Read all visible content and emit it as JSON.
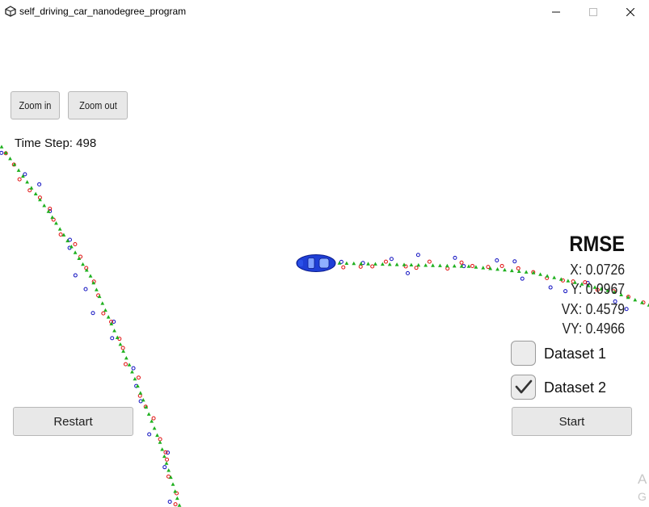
{
  "window": {
    "title": "self_driving_car_nanodegree_program"
  },
  "toolbar": {
    "zoom_in_label": "Zoom in",
    "zoom_out_label": "Zoom out"
  },
  "sim": {
    "time_step_label": "Time Step:",
    "time_step_value": "498"
  },
  "rmse": {
    "title": "RMSE",
    "x": "X: 0.0726",
    "y": "Y: 0.0967",
    "vx": "VX: 0.4579",
    "vy": "VY: 0.4966"
  },
  "datasets": [
    {
      "label": "Dataset 1",
      "checked": false
    },
    {
      "label": "Dataset 2",
      "checked": true
    }
  ],
  "controls": {
    "restart_label": "Restart",
    "start_label": "Start"
  },
  "overlay": {
    "partial_text_1": "A",
    "partial_text_2": "G"
  },
  "colors": {
    "car": "#1f3fd6",
    "estimate": "#1fb01f",
    "lidar": "#e01010",
    "radar": "#1010c0"
  }
}
